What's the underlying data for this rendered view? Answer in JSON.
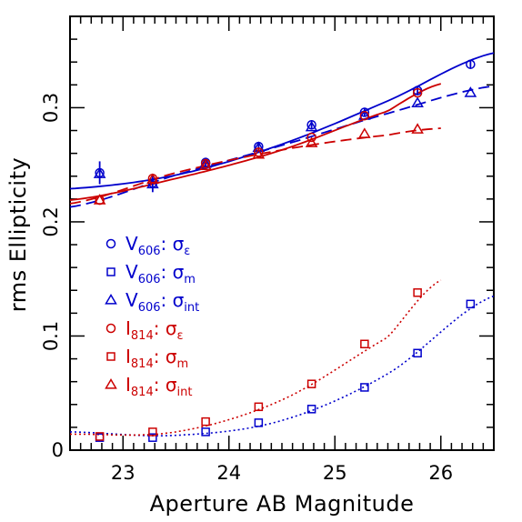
{
  "chart_data": {
    "type": "scatter",
    "xlabel": "Aperture AB Magnitude",
    "ylabel": "rms Ellipticity",
    "xlim": [
      22.5,
      26.5
    ],
    "ylim": [
      0.0,
      0.38
    ],
    "xticks": [
      23,
      24,
      25,
      26
    ],
    "xtick_labels": [
      "23",
      "24",
      "25",
      "26"
    ],
    "yticks": [
      0.1,
      0.2,
      0.3
    ],
    "ytick_labels": [
      "0.1",
      "0.2",
      "0.3"
    ],
    "grid": false,
    "legend_position": "left-center",
    "colors": {
      "V606": "#0000cc",
      "I814": "#cc0000"
    },
    "series": [
      {
        "name": "V606: σε",
        "legend_main": "V",
        "legend_band": "606",
        "legend_sym": "σ",
        "legend_comp": "ε",
        "marker": "circle",
        "color": "#0000cc",
        "x": [
          22.78,
          23.28,
          23.78,
          24.28,
          24.78,
          25.28,
          25.78,
          26.28
        ],
        "y": [
          0.243,
          0.234,
          0.252,
          0.266,
          0.285,
          0.296,
          0.315,
          0.338
        ],
        "yerr": [
          0.01,
          0.008,
          0.004,
          0.004,
          0.004,
          0.004,
          0.004,
          0.003
        ]
      },
      {
        "name": "V606: σm",
        "legend_main": "V",
        "legend_band": "606",
        "legend_sym": "σ",
        "legend_comp": "m",
        "marker": "square",
        "color": "#0000cc",
        "x": [
          22.78,
          23.28,
          23.78,
          24.28,
          24.78,
          25.28,
          25.78,
          26.28
        ],
        "y": [
          0.011,
          0.011,
          0.016,
          0.024,
          0.036,
          0.055,
          0.085,
          0.128
        ]
      },
      {
        "name": "V606: σint",
        "legend_main": "V",
        "legend_band": "606",
        "legend_sym": "σ",
        "legend_comp": "int",
        "marker": "triangle",
        "color": "#0000cc",
        "x": [
          22.78,
          23.28,
          23.78,
          24.28,
          24.78,
          25.28,
          25.78,
          26.28
        ],
        "y": [
          0.242,
          0.233,
          0.251,
          0.265,
          0.283,
          0.293,
          0.304,
          0.313
        ]
      },
      {
        "name": "I814: σε",
        "legend_main": "I",
        "legend_band": "814",
        "legend_sym": "σ",
        "legend_comp": "ε",
        "marker": "circle",
        "color": "#cc0000",
        "x": [
          22.78,
          23.28,
          23.78,
          24.28,
          24.78,
          25.28,
          25.78
        ],
        "y": [
          0.219,
          0.238,
          0.251,
          0.261,
          0.274,
          0.293,
          0.313
        ]
      },
      {
        "name": "I814: σm",
        "legend_main": "I",
        "legend_band": "814",
        "legend_sym": "σ",
        "legend_comp": "m",
        "marker": "square",
        "color": "#cc0000",
        "x": [
          22.78,
          23.28,
          23.78,
          24.28,
          24.78,
          25.28,
          25.78
        ],
        "y": [
          0.012,
          0.016,
          0.025,
          0.038,
          0.058,
          0.093,
          0.138
        ]
      },
      {
        "name": "I814: σint",
        "legend_main": "I",
        "legend_band": "814",
        "legend_sym": "σ",
        "legend_comp": "int",
        "marker": "triangle",
        "color": "#cc0000",
        "x": [
          22.78,
          23.28,
          23.78,
          24.28,
          24.78,
          25.28,
          25.78
        ],
        "y": [
          0.219,
          0.237,
          0.249,
          0.259,
          0.269,
          0.277,
          0.281
        ]
      }
    ],
    "fits": [
      {
        "series": "V606: σε",
        "style": "solid",
        "color": "#0000cc",
        "x_range": [
          22.5,
          26.5
        ],
        "points": [
          [
            22.5,
            0.229
          ],
          [
            23.5,
            0.241
          ],
          [
            24.5,
            0.268
          ],
          [
            25.5,
            0.306
          ],
          [
            26.5,
            0.348
          ]
        ]
      },
      {
        "series": "V606: σint",
        "style": "dashed",
        "color": "#0000cc",
        "x_range": [
          22.5,
          26.5
        ],
        "points": [
          [
            22.5,
            0.213
          ],
          [
            23.5,
            0.241
          ],
          [
            24.5,
            0.267
          ],
          [
            25.5,
            0.295
          ],
          [
            26.5,
            0.319
          ]
        ]
      },
      {
        "series": "I814: σε",
        "style": "solid",
        "color": "#cc0000",
        "x_range": [
          22.5,
          26.0
        ],
        "points": [
          [
            22.5,
            0.219
          ],
          [
            23.5,
            0.238
          ],
          [
            24.5,
            0.263
          ],
          [
            25.5,
            0.297
          ],
          [
            26.0,
            0.321
          ]
        ]
      },
      {
        "series": "I814: σint",
        "style": "dashed",
        "color": "#cc0000",
        "x_range": [
          22.5,
          26.0
        ],
        "points": [
          [
            22.5,
            0.216
          ],
          [
            23.5,
            0.243
          ],
          [
            24.5,
            0.263
          ],
          [
            25.5,
            0.276
          ],
          [
            26.0,
            0.282
          ]
        ]
      },
      {
        "series": "V606: σm",
        "style": "dotted",
        "color": "#0000cc",
        "x_range": [
          22.5,
          26.5
        ],
        "points": [
          [
            22.5,
            0.016
          ],
          [
            23.5,
            0.013
          ],
          [
            24.5,
            0.026
          ],
          [
            25.5,
            0.067
          ],
          [
            26.5,
            0.135
          ]
        ]
      },
      {
        "series": "I814: σm",
        "style": "dotted",
        "color": "#cc0000",
        "x_range": [
          22.5,
          26.0
        ],
        "points": [
          [
            22.5,
            0.014
          ],
          [
            23.5,
            0.016
          ],
          [
            24.5,
            0.044
          ],
          [
            25.5,
            0.099
          ],
          [
            26.0,
            0.149
          ]
        ]
      }
    ]
  }
}
